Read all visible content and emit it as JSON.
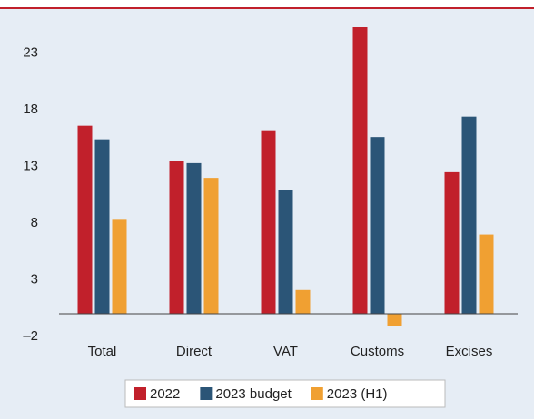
{
  "chart_data": {
    "type": "bar",
    "categories": [
      "Total",
      "Direct",
      "VAT",
      "Customs",
      "Excises"
    ],
    "series": [
      {
        "name": "2022",
        "color": "#c1202b",
        "values": [
          16.6,
          13.5,
          16.2,
          25.3,
          12.5
        ]
      },
      {
        "name": "2023 budget",
        "color": "#2b5577",
        "values": [
          15.4,
          13.3,
          10.9,
          15.6,
          17.4
        ]
      },
      {
        "name": "2023 (H1)",
        "color": "#f0a032",
        "values": [
          8.3,
          12.0,
          2.1,
          -1.1,
          7.0
        ]
      }
    ],
    "ylim": [
      -2,
      25.3
    ],
    "yticks": [
      {
        "value": -2,
        "label": "–2"
      },
      3,
      8,
      13,
      18,
      23
    ],
    "grid": false,
    "legend": "bottom"
  }
}
